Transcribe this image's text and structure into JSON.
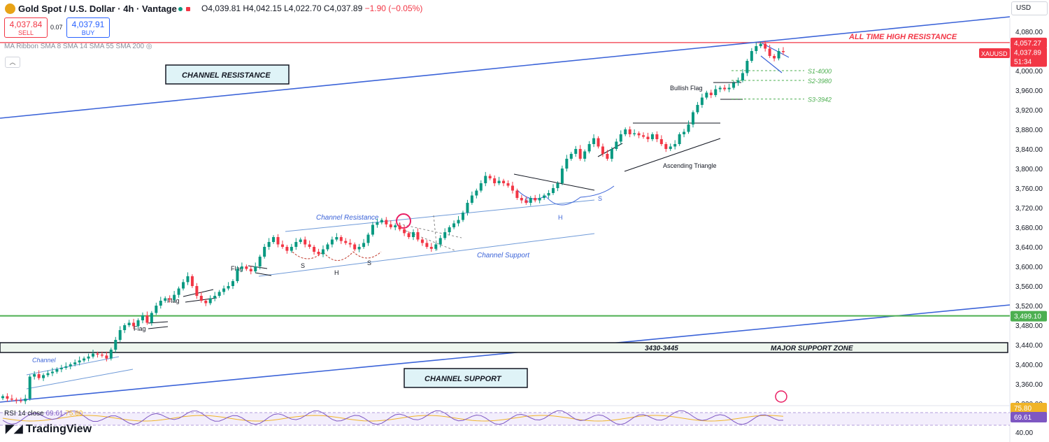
{
  "header": {
    "title": "Gold Spot / U.S. Dollar · 4h · Vantage",
    "open": "O4,039.81",
    "high": "H4,042.15",
    "low": "L4,022.70",
    "close": "C4,037.89",
    "change": "−1.90 (−0.05%)",
    "sell_value": "4,037.84",
    "sell_label": "SELL",
    "spread": "0.07",
    "buy_value": "4,037.91",
    "buy_label": "BUY",
    "indicator": "MA Ribbon SMA 8 SMA 14 SMA 55 SMA 200",
    "currency": "USD",
    "colors": {
      "sell": "#f23645",
      "buy": "#2962ff",
      "up": "#089981",
      "down": "#f23645",
      "logo": "#e8a317"
    }
  },
  "axis": {
    "ticks": [
      "4,080.00",
      "4,000.00",
      "3,960.00",
      "3,920.00",
      "3,880.00",
      "3,840.00",
      "3,800.00",
      "3,760.00",
      "3,720.00",
      "3,680.00",
      "3,640.00",
      "3,600.00",
      "3,560.00",
      "3,520.00",
      "3,480.00",
      "3,440.00",
      "3,400.00",
      "3,360.00",
      "3,320.00"
    ],
    "tick_values": [
      4080,
      4000,
      3960,
      3920,
      3880,
      3840,
      3800,
      3760,
      3720,
      3680,
      3640,
      3600,
      3560,
      3520,
      3480,
      3440,
      3400,
      3360,
      3320
    ],
    "price_tag_high": "4,057.27",
    "price_tag_symbol": "XAUUSD",
    "price_tag_last": "4,037.89",
    "price_tag_timer": "51:34",
    "price_tag_support": "3,499.10",
    "rsi_tag_upper": "75.80",
    "rsi_tag_lower": "69.61",
    "rsi_tick": "40.00"
  },
  "chart_data": {
    "type": "candlestick",
    "y_range": [
      3300,
      4100
    ],
    "price_levels": [
      {
        "label": "ALL TIME HIGH RESISTANCE",
        "value": 4057.27
      },
      {
        "label": "3,499.10",
        "value": 3499.1
      },
      {
        "label": "S1-4000",
        "value": 4000
      },
      {
        "label": "S2-3980",
        "value": 3980
      },
      {
        "label": "S3-3942",
        "value": 3942
      }
    ],
    "support_zone": {
      "label": "3430-3445",
      "name": "MAJOR SUPPORT ZONE",
      "range": [
        3430,
        3445
      ]
    },
    "annotations": [
      "CHANNEL RESISTANCE",
      "CHANNEL SUPPORT",
      "Channel Resistance",
      "Channel Support",
      "Bullish Flag",
      "Ascending Triangle",
      "Flag",
      "Flag",
      "Flag",
      "Channel",
      "S",
      "H",
      "S",
      "S",
      "H",
      "S"
    ],
    "candles_close": [
      3335,
      3330,
      3328,
      3326,
      3325,
      3330,
      3375,
      3380,
      3372,
      3378,
      3382,
      3385,
      3390,
      3393,
      3396,
      3400,
      3404,
      3408,
      3412,
      3416,
      3422,
      3420,
      3418,
      3412,
      3430,
      3450,
      3470,
      3480,
      3485,
      3478,
      3490,
      3500,
      3485,
      3505,
      3520,
      3530,
      3535,
      3532,
      3542,
      3555,
      3568,
      3580,
      3560,
      3540,
      3530,
      3525,
      3535,
      3540,
      3548,
      3555,
      3560,
      3570,
      3595,
      3600,
      3595,
      3590,
      3600,
      3620,
      3640,
      3650,
      3660,
      3645,
      3640,
      3632,
      3640,
      3650,
      3655,
      3645,
      3640,
      3630,
      3625,
      3635,
      3645,
      3655,
      3660,
      3652,
      3648,
      3645,
      3635,
      3640,
      3648,
      3665,
      3685,
      3690,
      3695,
      3686,
      3680,
      3684,
      3676,
      3668,
      3660,
      3670,
      3655,
      3648,
      3640,
      3636,
      3645,
      3658,
      3670,
      3680,
      3688,
      3695,
      3710,
      3730,
      3745,
      3755,
      3770,
      3785,
      3780,
      3770,
      3775,
      3770,
      3765,
      3755,
      3740,
      3735,
      3730,
      3740,
      3735,
      3740,
      3745,
      3750,
      3760,
      3770,
      3800,
      3820,
      3830,
      3840,
      3820,
      3835,
      3850,
      3862,
      3845,
      3830,
      3820,
      3840,
      3855,
      3870,
      3880,
      3870,
      3872,
      3868,
      3865,
      3860,
      3870,
      3860,
      3850,
      3840,
      3845,
      3850,
      3870,
      3875,
      3890,
      3915,
      3930,
      3945,
      3955,
      3950,
      3962,
      3965,
      3962,
      3965,
      3975,
      3980,
      3995,
      4020,
      4040,
      4050,
      4055,
      4045,
      4030,
      4025,
      4040,
      4037.89
    ],
    "rsi": {
      "label": "RSI 14 close",
      "value": 69.61,
      "ma": 75.8
    }
  }
}
